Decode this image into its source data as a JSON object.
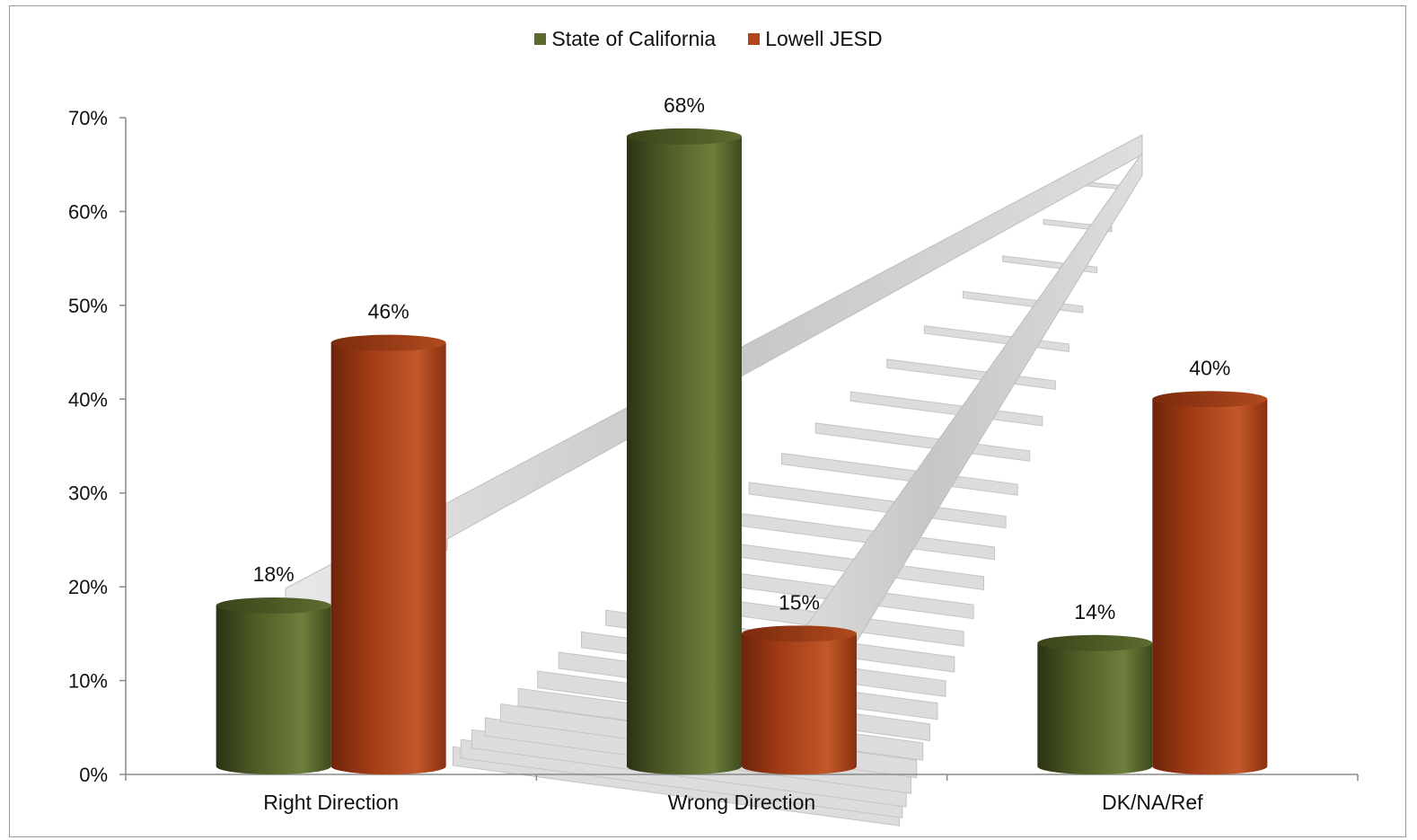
{
  "chart_data": {
    "type": "bar",
    "categories": [
      "Right Direction",
      "Wrong Direction",
      "DK/NA/Ref"
    ],
    "series": [
      {
        "name": "State of California",
        "values": [
          18,
          68,
          14
        ],
        "labels": [
          "18%",
          "68%",
          "14%"
        ],
        "color": "#5b6b2f"
      },
      {
        "name": "Lowell JESD",
        "values": [
          46,
          15,
          40
        ],
        "labels": [
          "46%",
          "15%",
          "40%"
        ],
        "color": "#b1461e"
      }
    ],
    "ylim": [
      0,
      70
    ],
    "yticks": [
      0,
      10,
      20,
      30,
      40,
      50,
      60,
      70
    ],
    "ytick_labels": [
      "0%",
      "10%",
      "20%",
      "30%",
      "40%",
      "50%",
      "60%",
      "70%"
    ],
    "grid": false,
    "legend_position": "top-center",
    "title": "",
    "xlabel": "",
    "ylabel": "",
    "background_image": "railroad-tracks"
  }
}
